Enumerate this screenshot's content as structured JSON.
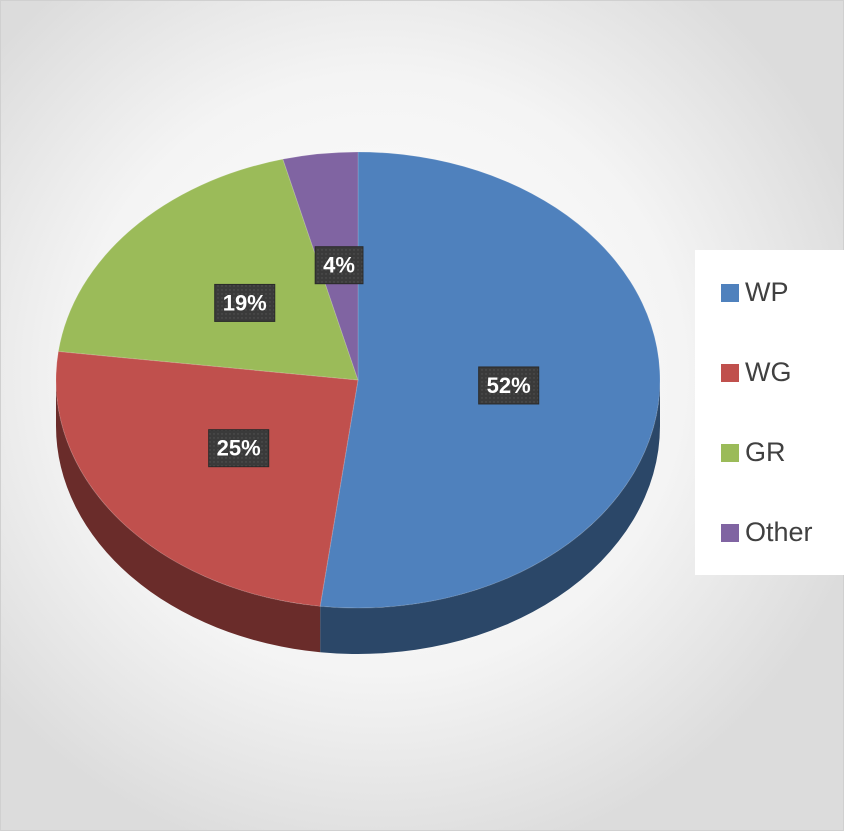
{
  "chart_data": {
    "type": "pie",
    "categories": [
      "WP",
      "WG",
      "GR",
      "Other"
    ],
    "values": [
      52,
      25,
      19,
      4
    ],
    "value_labels": [
      "52%",
      "25%",
      "19%",
      "4%"
    ],
    "colors": [
      "#4f81bd",
      "#c0504d",
      "#9bbb59",
      "#8064a2"
    ],
    "legend": "right"
  }
}
